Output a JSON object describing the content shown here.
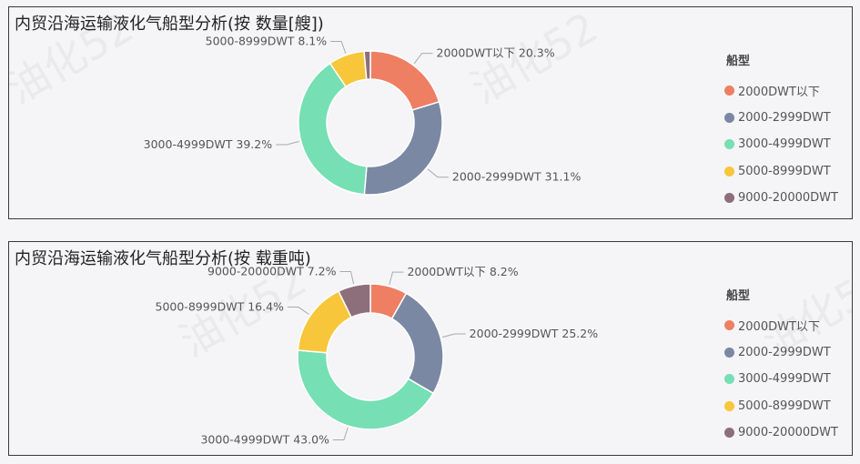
{
  "colors": [
    "#ee7f63",
    "#7b88a3",
    "#76dfb4",
    "#f8c63a",
    "#8d6f7c"
  ],
  "watermark_text": "油化52",
  "chart_data": [
    {
      "type": "pie",
      "donut": true,
      "title": "内贸沿海运输液化气船型分析(按 数量[艘])",
      "legend_title": "船型",
      "legend_position": "right",
      "categories": [
        "2000DWT以下",
        "2000-2999DWT",
        "3000-4999DWT",
        "5000-8999DWT",
        "9000-20000DWT"
      ],
      "values": [
        20.3,
        31.1,
        39.2,
        8.1,
        1.4
      ],
      "labels": [
        "2000DWT以下 20.3%",
        "2000-2999DWT 31.1%",
        "3000-4999DWT 39.2%",
        "5000-8999DWT 8.1%",
        ""
      ]
    },
    {
      "type": "pie",
      "donut": true,
      "title": "内贸沿海运输液化气船型分析(按 载重吨)",
      "legend_title": "船型",
      "legend_position": "right",
      "categories": [
        "2000DWT以下",
        "2000-2999DWT",
        "3000-4999DWT",
        "5000-8999DWT",
        "9000-20000DWT"
      ],
      "values": [
        8.2,
        25.2,
        43.0,
        16.4,
        7.2
      ],
      "labels": [
        "2000DWT以下 8.2%",
        "2000-2999DWT 25.2%",
        "3000-4999DWT 43.0%",
        "5000-8999DWT 16.4%",
        "9000-20000DWT 7.2%"
      ]
    }
  ]
}
